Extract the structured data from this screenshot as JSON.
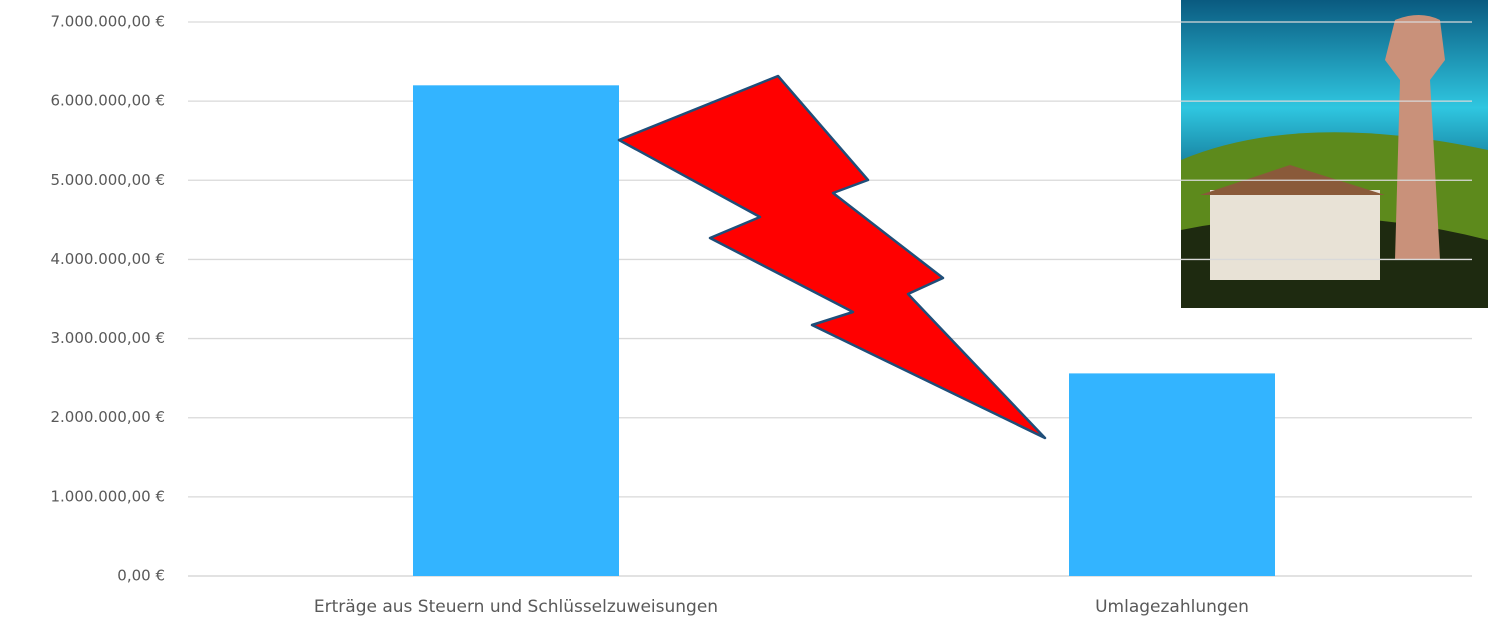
{
  "chart_data": {
    "type": "bar",
    "categories": [
      "Erträge aus Steuern und Schlüsselzuweisungen",
      "Umlagezahlungen"
    ],
    "values": [
      6200000,
      2560000
    ],
    "color": "#33b4ff",
    "ylim": [
      0,
      7000000
    ],
    "yticks": [
      {
        "value": 0,
        "label": "0,00 €"
      },
      {
        "value": 1000000,
        "label": "1.000.000,00 €"
      },
      {
        "value": 2000000,
        "label": "2.000.000,00 €"
      },
      {
        "value": 3000000,
        "label": "3.000.000,00 €"
      },
      {
        "value": 4000000,
        "label": "4.000.000,00 €"
      },
      {
        "value": 5000000,
        "label": "5.000.000,00 €"
      },
      {
        "value": 6000000,
        "label": "6.000.000,00 €"
      },
      {
        "value": 7000000,
        "label": "7.000.000,00 €"
      }
    ],
    "grid": true
  }
}
